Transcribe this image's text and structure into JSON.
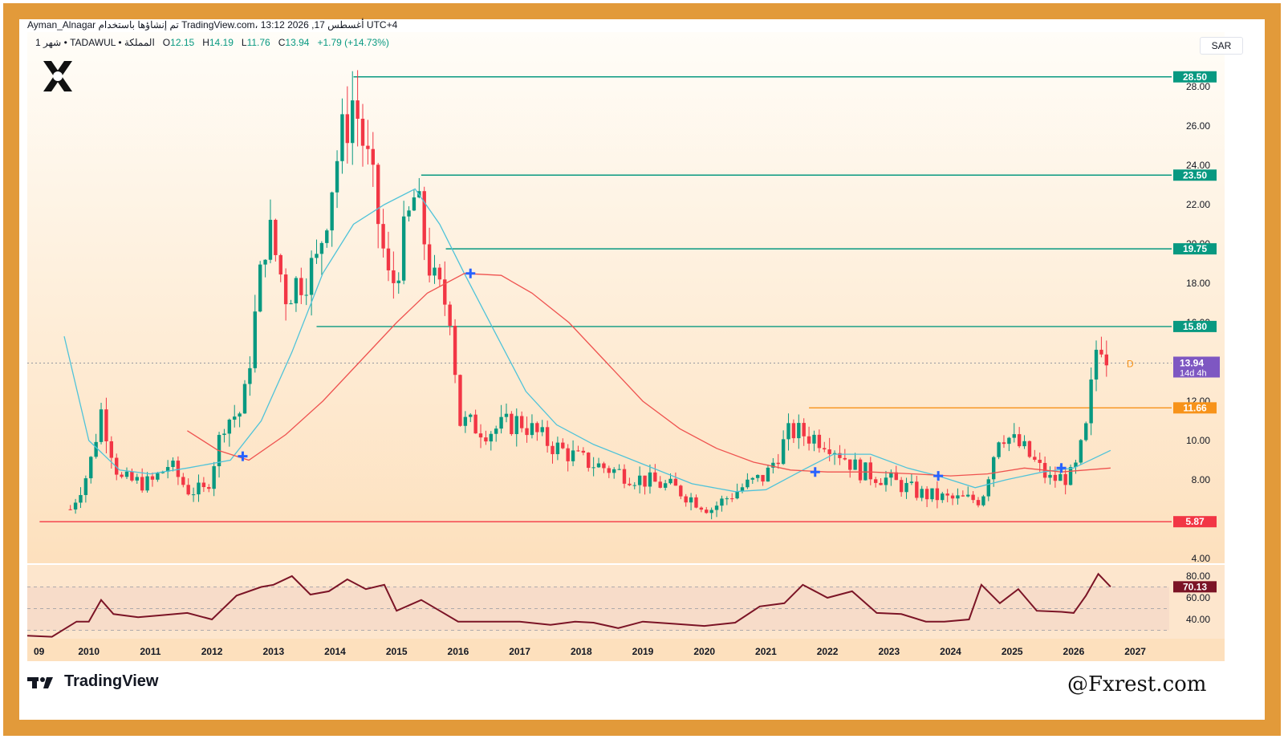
{
  "header": {
    "author_line": "Ayman_Alnagar تم إنشاؤها باستخدام TradingView.com، 13:12 2026 ,17 أغسطس UTC+4",
    "symbol_line": "شهر 1 • TADAWUL • المملكة",
    "open_label": "O",
    "open": "12.15",
    "high_label": "H",
    "high": "14.19",
    "low_label": "L",
    "low": "11.76",
    "close_label": "C",
    "close": "13.94",
    "change": "+1.79 (+14.73%)",
    "currency_button": "SAR"
  },
  "branding": {
    "logo_text": "TradingView",
    "watermark": "@Fxrest.com"
  },
  "colors": {
    "frame": "#e29a3a",
    "up_candle": "#089981",
    "down_candle": "#f23645",
    "level_line": "#089981",
    "orange_level": "#f7931a",
    "red_level": "#f23645",
    "fast_ma": "#4fc3d9",
    "slow_ma": "#ef5350",
    "rsi_line": "#7b1426",
    "last_price_tag": "#7e57c2"
  },
  "chart_data": [
    {
      "type": "candlestick",
      "title": "",
      "timeframe": "1M",
      "x_axis_ticks": [
        "09",
        "2010",
        "2011",
        "2012",
        "2013",
        "2014",
        "2015",
        "2016",
        "2017",
        "2018",
        "2019",
        "2020",
        "2021",
        "2022",
        "2023",
        "2024",
        "2025",
        "2026",
        "2027"
      ],
      "y_axis_ticks": [
        "4.00",
        "8.00",
        "10.00",
        "12.00",
        "16.00",
        "18.00",
        "20.00",
        "22.00",
        "24.00",
        "26.00",
        "28.00"
      ],
      "ylim": [
        4,
        29
      ],
      "scale": "linear",
      "horizontal_levels": [
        {
          "value": 28.5,
          "label": "28.50",
          "color": "level_line"
        },
        {
          "value": 23.5,
          "label": "23.50",
          "color": "level_line"
        },
        {
          "value": 19.75,
          "label": "19.75",
          "color": "level_line"
        },
        {
          "value": 15.8,
          "label": "15.80",
          "color": "level_line"
        },
        {
          "value": 11.66,
          "label": "11.66",
          "color": "orange_level"
        },
        {
          "value": 5.87,
          "label": "5.87",
          "color": "red_level"
        }
      ],
      "last_price": {
        "value": 13.94,
        "label": "13.94",
        "countdown": "14d 4h"
      },
      "price_path_yearly": [
        {
          "x": 2009.7,
          "y": 6.5
        },
        {
          "x": 2010.0,
          "y": 8.5
        },
        {
          "x": 2010.2,
          "y": 11.5
        },
        {
          "x": 2010.5,
          "y": 8.0
        },
        {
          "x": 2011.0,
          "y": 7.8
        },
        {
          "x": 2011.3,
          "y": 8.8
        },
        {
          "x": 2011.6,
          "y": 7.5
        },
        {
          "x": 2011.9,
          "y": 7.4
        },
        {
          "x": 2012.2,
          "y": 11.0
        },
        {
          "x": 2012.5,
          "y": 11.5
        },
        {
          "x": 2012.9,
          "y": 21.0
        },
        {
          "x": 2013.2,
          "y": 17.5
        },
        {
          "x": 2013.7,
          "y": 19.0
        },
        {
          "x": 2014.0,
          "y": 24.0
        },
        {
          "x": 2014.3,
          "y": 27.5
        },
        {
          "x": 2014.6,
          "y": 23.0
        },
        {
          "x": 2014.9,
          "y": 17.5
        },
        {
          "x": 2015.3,
          "y": 22.5
        },
        {
          "x": 2015.6,
          "y": 18.0
        },
        {
          "x": 2015.9,
          "y": 16.5
        },
        {
          "x": 2016.0,
          "y": 11.0
        },
        {
          "x": 2016.5,
          "y": 10.5
        },
        {
          "x": 2017.0,
          "y": 11.0
        },
        {
          "x": 2017.5,
          "y": 9.8
        },
        {
          "x": 2018.0,
          "y": 9.0
        },
        {
          "x": 2018.5,
          "y": 8.5
        },
        {
          "x": 2019.0,
          "y": 8.0
        },
        {
          "x": 2019.5,
          "y": 7.6
        },
        {
          "x": 2020.1,
          "y": 6.5
        },
        {
          "x": 2020.6,
          "y": 7.6
        },
        {
          "x": 2021.0,
          "y": 8.2
        },
        {
          "x": 2021.4,
          "y": 10.5
        },
        {
          "x": 2022.0,
          "y": 10.0
        },
        {
          "x": 2022.5,
          "y": 8.5
        },
        {
          "x": 2023.0,
          "y": 8.0
        },
        {
          "x": 2023.5,
          "y": 7.3
        },
        {
          "x": 2024.0,
          "y": 7.0
        },
        {
          "x": 2024.5,
          "y": 7.0
        },
        {
          "x": 2024.8,
          "y": 10.5
        },
        {
          "x": 2025.2,
          "y": 9.5
        },
        {
          "x": 2025.6,
          "y": 8.0
        },
        {
          "x": 2026.0,
          "y": 8.2
        },
        {
          "x": 2026.2,
          "y": 10.5
        },
        {
          "x": 2026.4,
          "y": 15.5
        },
        {
          "x": 2026.6,
          "y": 13.94
        }
      ],
      "fast_ma": [
        {
          "x": 2009.6,
          "y": 15.3
        },
        {
          "x": 2010.0,
          "y": 10.0
        },
        {
          "x": 2010.5,
          "y": 8.5
        },
        {
          "x": 2011.0,
          "y": 8.3
        },
        {
          "x": 2011.6,
          "y": 8.6
        },
        {
          "x": 2012.3,
          "y": 9.0
        },
        {
          "x": 2012.8,
          "y": 11.0
        },
        {
          "x": 2013.3,
          "y": 14.5
        },
        {
          "x": 2013.8,
          "y": 18.5
        },
        {
          "x": 2014.3,
          "y": 21.0
        },
        {
          "x": 2014.8,
          "y": 22.0
        },
        {
          "x": 2015.3,
          "y": 22.8
        },
        {
          "x": 2015.7,
          "y": 21.0
        },
        {
          "x": 2016.1,
          "y": 18.5
        },
        {
          "x": 2016.6,
          "y": 15.5
        },
        {
          "x": 2017.1,
          "y": 12.5
        },
        {
          "x": 2017.6,
          "y": 10.8
        },
        {
          "x": 2018.2,
          "y": 9.8
        },
        {
          "x": 2019.0,
          "y": 8.8
        },
        {
          "x": 2019.8,
          "y": 7.8
        },
        {
          "x": 2020.5,
          "y": 7.4
        },
        {
          "x": 2021.0,
          "y": 7.5
        },
        {
          "x": 2021.6,
          "y": 8.5
        },
        {
          "x": 2022.1,
          "y": 9.3
        },
        {
          "x": 2022.7,
          "y": 9.3
        },
        {
          "x": 2023.3,
          "y": 8.6
        },
        {
          "x": 2023.8,
          "y": 8.2
        },
        {
          "x": 2024.4,
          "y": 7.6
        },
        {
          "x": 2024.9,
          "y": 8.0
        },
        {
          "x": 2025.5,
          "y": 8.4
        },
        {
          "x": 2026.0,
          "y": 8.6
        },
        {
          "x": 2026.6,
          "y": 9.5
        }
      ],
      "slow_ma": [
        {
          "x": 2011.6,
          "y": 10.5
        },
        {
          "x": 2012.1,
          "y": 9.5
        },
        {
          "x": 2012.6,
          "y": 9.0
        },
        {
          "x": 2013.2,
          "y": 10.3
        },
        {
          "x": 2013.8,
          "y": 12.0
        },
        {
          "x": 2014.4,
          "y": 14.0
        },
        {
          "x": 2015.0,
          "y": 16.0
        },
        {
          "x": 2015.5,
          "y": 17.5
        },
        {
          "x": 2016.1,
          "y": 18.5
        },
        {
          "x": 2016.7,
          "y": 18.4
        },
        {
          "x": 2017.2,
          "y": 17.5
        },
        {
          "x": 2017.8,
          "y": 16.0
        },
        {
          "x": 2018.4,
          "y": 14.0
        },
        {
          "x": 2019.0,
          "y": 12.0
        },
        {
          "x": 2019.6,
          "y": 10.6
        },
        {
          "x": 2020.2,
          "y": 9.6
        },
        {
          "x": 2020.8,
          "y": 8.9
        },
        {
          "x": 2021.4,
          "y": 8.5
        },
        {
          "x": 2022.0,
          "y": 8.4
        },
        {
          "x": 2022.7,
          "y": 8.4
        },
        {
          "x": 2023.4,
          "y": 8.3
        },
        {
          "x": 2024.0,
          "y": 8.2
        },
        {
          "x": 2024.6,
          "y": 8.3
        },
        {
          "x": 2025.2,
          "y": 8.6
        },
        {
          "x": 2025.8,
          "y": 8.4
        },
        {
          "x": 2026.6,
          "y": 8.6
        }
      ],
      "cross_markers": [
        {
          "x": 2012.5,
          "y": 9.2
        },
        {
          "x": 2016.2,
          "y": 18.5
        },
        {
          "x": 2021.8,
          "y": 8.4
        },
        {
          "x": 2023.8,
          "y": 8.2
        },
        {
          "x": 2025.8,
          "y": 8.6
        }
      ]
    },
    {
      "type": "line",
      "title": "",
      "indicator": "RSI",
      "y_axis_ticks": [
        "40.00",
        "60.00",
        "80.00"
      ],
      "ylim": [
        20,
        85
      ],
      "bands": [
        70,
        50,
        30
      ],
      "last_value": {
        "value": 70.13,
        "label": "70.13"
      },
      "series": [
        {
          "values_xy": [
            [
              2009.0,
              25
            ],
            [
              2009.4,
              24
            ],
            [
              2009.8,
              38
            ],
            [
              2010.0,
              38
            ],
            [
              2010.2,
              58
            ],
            [
              2010.4,
              45
            ],
            [
              2010.8,
              42
            ],
            [
              2011.2,
              44
            ],
            [
              2011.6,
              46
            ],
            [
              2012.0,
              40
            ],
            [
              2012.4,
              62
            ],
            [
              2012.8,
              70
            ],
            [
              2013.0,
              72
            ],
            [
              2013.3,
              80
            ],
            [
              2013.6,
              63
            ],
            [
              2013.9,
              66
            ],
            [
              2014.2,
              77
            ],
            [
              2014.5,
              68
            ],
            [
              2014.8,
              72
            ],
            [
              2015.0,
              48
            ],
            [
              2015.4,
              58
            ],
            [
              2015.7,
              48
            ],
            [
              2016.0,
              38
            ],
            [
              2016.5,
              38
            ],
            [
              2017.0,
              38
            ],
            [
              2017.5,
              35
            ],
            [
              2017.9,
              38
            ],
            [
              2018.2,
              37
            ],
            [
              2018.6,
              32
            ],
            [
              2019.0,
              38
            ],
            [
              2019.5,
              36
            ],
            [
              2020.0,
              34
            ],
            [
              2020.5,
              37
            ],
            [
              2020.9,
              52
            ],
            [
              2021.3,
              55
            ],
            [
              2021.6,
              72
            ],
            [
              2022.0,
              60
            ],
            [
              2022.4,
              66
            ],
            [
              2022.8,
              46
            ],
            [
              2023.2,
              45
            ],
            [
              2023.6,
              38
            ],
            [
              2023.9,
              38
            ],
            [
              2024.3,
              40
            ],
            [
              2024.5,
              72
            ],
            [
              2024.8,
              55
            ],
            [
              2025.1,
              68
            ],
            [
              2025.4,
              48
            ],
            [
              2025.8,
              47
            ],
            [
              2026.0,
              46
            ],
            [
              2026.2,
              62
            ],
            [
              2026.4,
              82
            ],
            [
              2026.6,
              70.13
            ]
          ]
        }
      ]
    }
  ]
}
